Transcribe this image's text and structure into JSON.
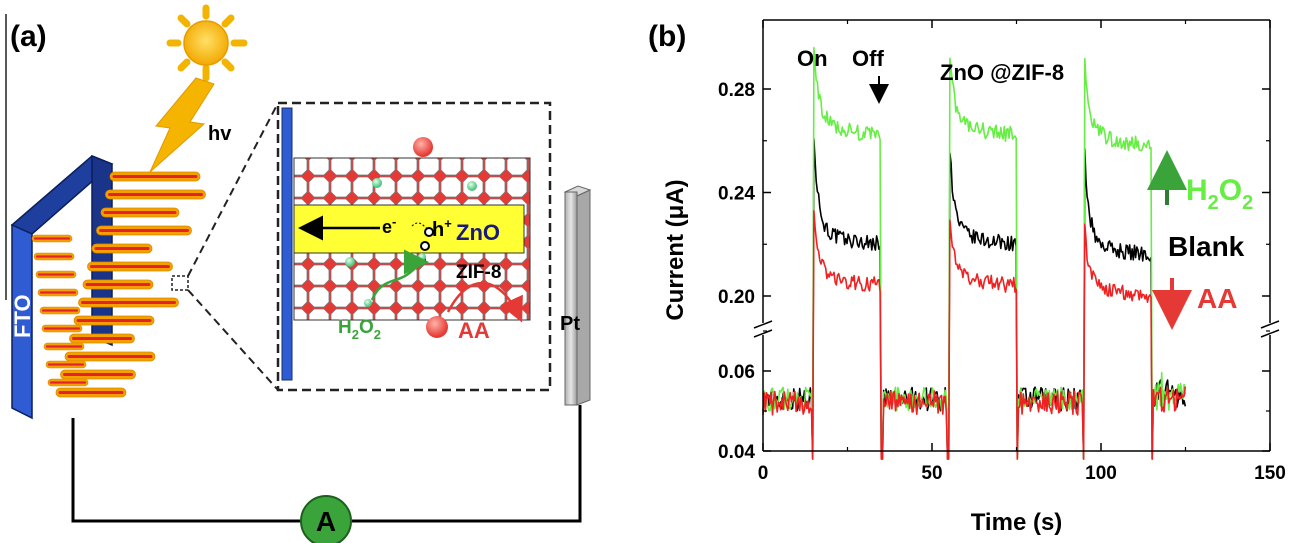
{
  "panel_a": {
    "label": "(a)",
    "light_label": "hv",
    "electrode_label": "FTO",
    "counter_label": "Pt",
    "inset": {
      "electron": "e",
      "electron_sup": "-",
      "hole": "h",
      "hole_sup": "+",
      "zno": "ZnO",
      "zif": "ZIF-8",
      "h2o2": "H",
      "h2o2_sub1": "2",
      "h2o2_o": "O",
      "h2o2_sub2": "2",
      "aa": "AA"
    },
    "ammeter": "A",
    "colors": {
      "electrode_face": "#2f5bd3",
      "rod_orange": "#f5a000",
      "rod_red": "#e3232b",
      "zno": "#ffff33",
      "zif_red": "#e53935",
      "green": "#3aa43a",
      "ammeter": "#3aa43a"
    }
  },
  "panel_b": {
    "label": "(b)",
    "annotations": {
      "on": "On",
      "off": "Off",
      "material": "ZnO @ZIF-8",
      "h2o2": "H",
      "h2o2_sub1": "2",
      "h2o2_o": "O",
      "h2o2_sub2": "2",
      "blank": "Blank",
      "aa": "AA"
    }
  },
  "chart_data": {
    "type": "line",
    "title": "",
    "xlabel": "Time (s)",
    "ylabel": "Current (μA)",
    "xlim": [
      0,
      150
    ],
    "xticks": [
      0,
      50,
      100,
      150
    ],
    "ylim_lower": [
      0.04,
      0.07
    ],
    "ylim_upper": [
      0.19,
      0.29
    ],
    "yticks": [
      0.04,
      0.06,
      0.2,
      0.24,
      0.28
    ],
    "ytick_labels": [
      "0.04",
      "0.06",
      "0.20",
      "0.24",
      "0.28"
    ],
    "axis_break": "between 0.06 and 0.20",
    "grid": false,
    "light_on_intervals": [
      [
        15,
        35
      ],
      [
        55,
        75
      ],
      [
        95,
        115
      ]
    ],
    "series": [
      {
        "name": "Blank",
        "color": "#000000",
        "dark_level": 0.053,
        "on_peak": 0.256,
        "on_level": 0.22
      },
      {
        "name": "H2O2",
        "color": "#66ee44",
        "dark_level": 0.053,
        "on_peak": 0.287,
        "on_level": 0.262
      },
      {
        "name": "AA",
        "color": "#ee2222",
        "dark_level": 0.052,
        "on_peak": 0.224,
        "on_level": 0.204
      }
    ],
    "colors": {
      "h2o2_arrow": "#2e7d32",
      "aa_arrow": "#e53935",
      "material_text": "#2a2a8a"
    }
  }
}
